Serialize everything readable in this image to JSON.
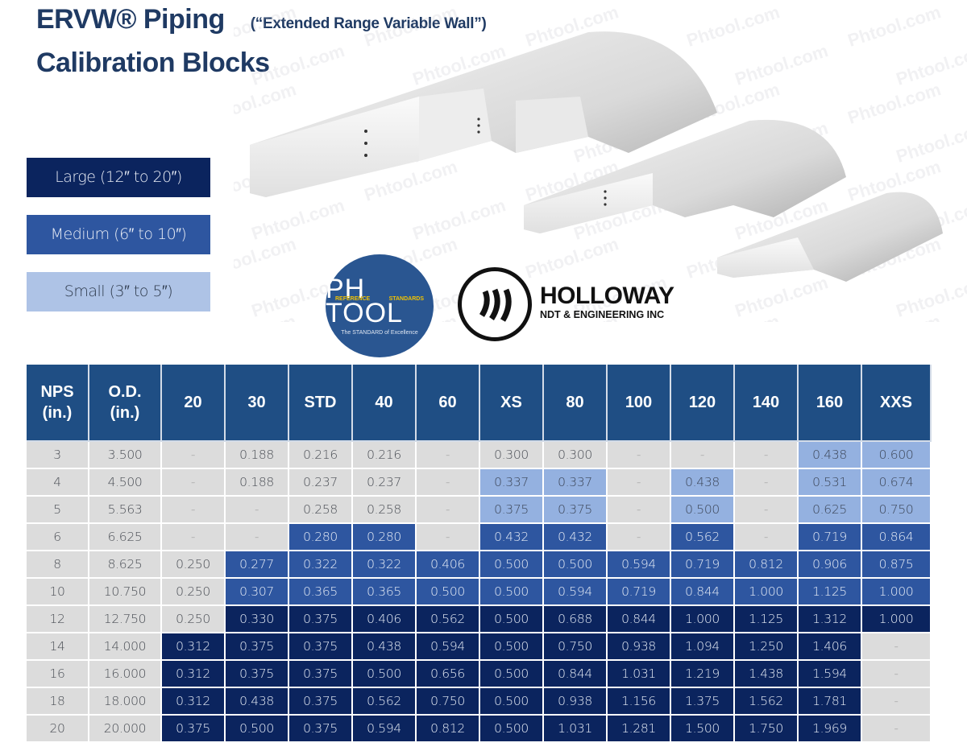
{
  "header": {
    "title_line1": "ERVW® Piping",
    "subtitle": "(“Extended Range Variable Wall”)",
    "title_line2": "Calibration Blocks"
  },
  "legend": [
    {
      "label": "Large (12″ to 20″)",
      "class": "large",
      "color": "#0b245e"
    },
    {
      "label": "Medium (6″ to 10″)",
      "class": "medium",
      "color": "#2e56a0"
    },
    {
      "label": "Small (3″ to 5″)",
      "class": "small",
      "color": "#aec3e6"
    }
  ],
  "logos": {
    "phtool": {
      "big": "PH TOOL",
      "left_band": "REFERENCE",
      "right_band": "STANDARDS",
      "tagline": "The STANDARD of Excellence"
    },
    "holloway": {
      "name": "HOLLOWAY",
      "sub": "NDT & ENGINEERING INC"
    }
  },
  "watermark": "Phtool.com",
  "table": {
    "headers": [
      "NPS\n(in.)",
      "O.D.\n(in.)",
      "20",
      "30",
      "STD",
      "40",
      "60",
      "XS",
      "80",
      "100",
      "120",
      "140",
      "160",
      "XXS"
    ],
    "rows": [
      {
        "cells": [
          "3",
          "3.500",
          "-",
          "0.188",
          "0.216",
          "0.216",
          "-",
          "0.300",
          "0.300",
          "-",
          "-",
          "-",
          "0.438",
          "0.600"
        ],
        "hl": [
          "",
          "",
          "",
          "",
          "",
          "",
          "",
          "",
          "",
          "",
          "",
          "",
          "s",
          "s"
        ]
      },
      {
        "cells": [
          "4",
          "4.500",
          "-",
          "0.188",
          "0.237",
          "0.237",
          "-",
          "0.337",
          "0.337",
          "-",
          "0.438",
          "-",
          "0.531",
          "0.674"
        ],
        "hl": [
          "",
          "",
          "",
          "",
          "",
          "",
          "",
          "s",
          "s",
          "",
          "s",
          "",
          "s",
          "s"
        ]
      },
      {
        "cells": [
          "5",
          "5.563",
          "-",
          "-",
          "0.258",
          "0.258",
          "-",
          "0.375",
          "0.375",
          "-",
          "0.500",
          "-",
          "0.625",
          "0.750"
        ],
        "hl": [
          "",
          "",
          "",
          "",
          "",
          "",
          "",
          "s",
          "s",
          "",
          "s",
          "",
          "s",
          "s"
        ]
      },
      {
        "cells": [
          "6",
          "6.625",
          "-",
          "-",
          "0.280",
          "0.280",
          "-",
          "0.432",
          "0.432",
          "-",
          "0.562",
          "-",
          "0.719",
          "0.864"
        ],
        "hl": [
          "",
          "",
          "",
          "",
          "m",
          "m",
          "",
          "m",
          "m",
          "",
          "m",
          "",
          "m",
          "m"
        ]
      },
      {
        "cells": [
          "8",
          "8.625",
          "0.250",
          "0.277",
          "0.322",
          "0.322",
          "0.406",
          "0.500",
          "0.500",
          "0.594",
          "0.719",
          "0.812",
          "0.906",
          "0.875"
        ],
        "hl": [
          "",
          "",
          "",
          "m",
          "m",
          "m",
          "m",
          "m",
          "m",
          "m",
          "m",
          "m",
          "m",
          "m"
        ]
      },
      {
        "cells": [
          "10",
          "10.750",
          "0.250",
          "0.307",
          "0.365",
          "0.365",
          "0.500",
          "0.500",
          "0.594",
          "0.719",
          "0.844",
          "1.000",
          "1.125",
          "1.000"
        ],
        "hl": [
          "",
          "",
          "",
          "m",
          "m",
          "m",
          "m",
          "m",
          "m",
          "m",
          "m",
          "m",
          "m",
          "m"
        ]
      },
      {
        "cells": [
          "12",
          "12.750",
          "0.250",
          "0.330",
          "0.375",
          "0.406",
          "0.562",
          "0.500",
          "0.688",
          "0.844",
          "1.000",
          "1.125",
          "1.312",
          "1.000"
        ],
        "hl": [
          "",
          "",
          "",
          "l",
          "l",
          "l",
          "l",
          "l",
          "l",
          "l",
          "l",
          "l",
          "l",
          "l"
        ]
      },
      {
        "cells": [
          "14",
          "14.000",
          "0.312",
          "0.375",
          "0.375",
          "0.438",
          "0.594",
          "0.500",
          "0.750",
          "0.938",
          "1.094",
          "1.250",
          "1.406",
          "-"
        ],
        "hl": [
          "",
          "",
          "l",
          "l",
          "l",
          "l",
          "l",
          "l",
          "l",
          "l",
          "l",
          "l",
          "l",
          ""
        ]
      },
      {
        "cells": [
          "16",
          "16.000",
          "0.312",
          "0.375",
          "0.375",
          "0.500",
          "0.656",
          "0.500",
          "0.844",
          "1.031",
          "1.219",
          "1.438",
          "1.594",
          "-"
        ],
        "hl": [
          "",
          "",
          "l",
          "l",
          "l",
          "l",
          "l",
          "l",
          "l",
          "l",
          "l",
          "l",
          "l",
          ""
        ]
      },
      {
        "cells": [
          "18",
          "18.000",
          "0.312",
          "0.438",
          "0.375",
          "0.562",
          "0.750",
          "0.500",
          "0.938",
          "1.156",
          "1.375",
          "1.562",
          "1.781",
          "-"
        ],
        "hl": [
          "",
          "",
          "l",
          "l",
          "l",
          "l",
          "l",
          "l",
          "l",
          "l",
          "l",
          "l",
          "l",
          ""
        ]
      },
      {
        "cells": [
          "20",
          "20.000",
          "0.375",
          "0.500",
          "0.375",
          "0.594",
          "0.812",
          "0.500",
          "1.031",
          "1.281",
          "1.500",
          "1.750",
          "1.969",
          "-"
        ],
        "hl": [
          "",
          "",
          "l",
          "l",
          "l",
          "l",
          "l",
          "l",
          "l",
          "l",
          "l",
          "l",
          "l",
          ""
        ]
      }
    ]
  }
}
